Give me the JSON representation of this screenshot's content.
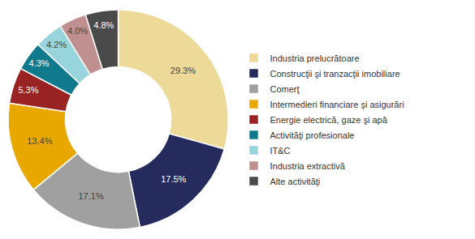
{
  "chart_data": {
    "type": "pie",
    "categories": [
      "Industria prelucrătoare",
      "Construcţii şi tranzacţii imobiliare",
      "Comerţ",
      "Intermedieri financiare şi asigurări",
      "Energie electrică, gaze şi apă",
      "Activităţi profesionale",
      "IT&C",
      "Industria extractivă",
      "Alte activităţi"
    ],
    "values": [
      29.3,
      17.5,
      17.1,
      13.4,
      5.3,
      4.3,
      4.2,
      4.0,
      4.8
    ],
    "value_labels": [
      "29.3%",
      "17.5%",
      "17.1%",
      "13.4%",
      "5.3%",
      "4.3%",
      "4.2%",
      "4.0%",
      "4.8%"
    ],
    "colors": [
      "#EDD998",
      "#252B5C",
      "#A0A0A0",
      "#E8A800",
      "#992222",
      "#107A8C",
      "#98D4DC",
      "#C09090",
      "#4A4A4A"
    ],
    "data_labels": true,
    "legend": "right"
  }
}
